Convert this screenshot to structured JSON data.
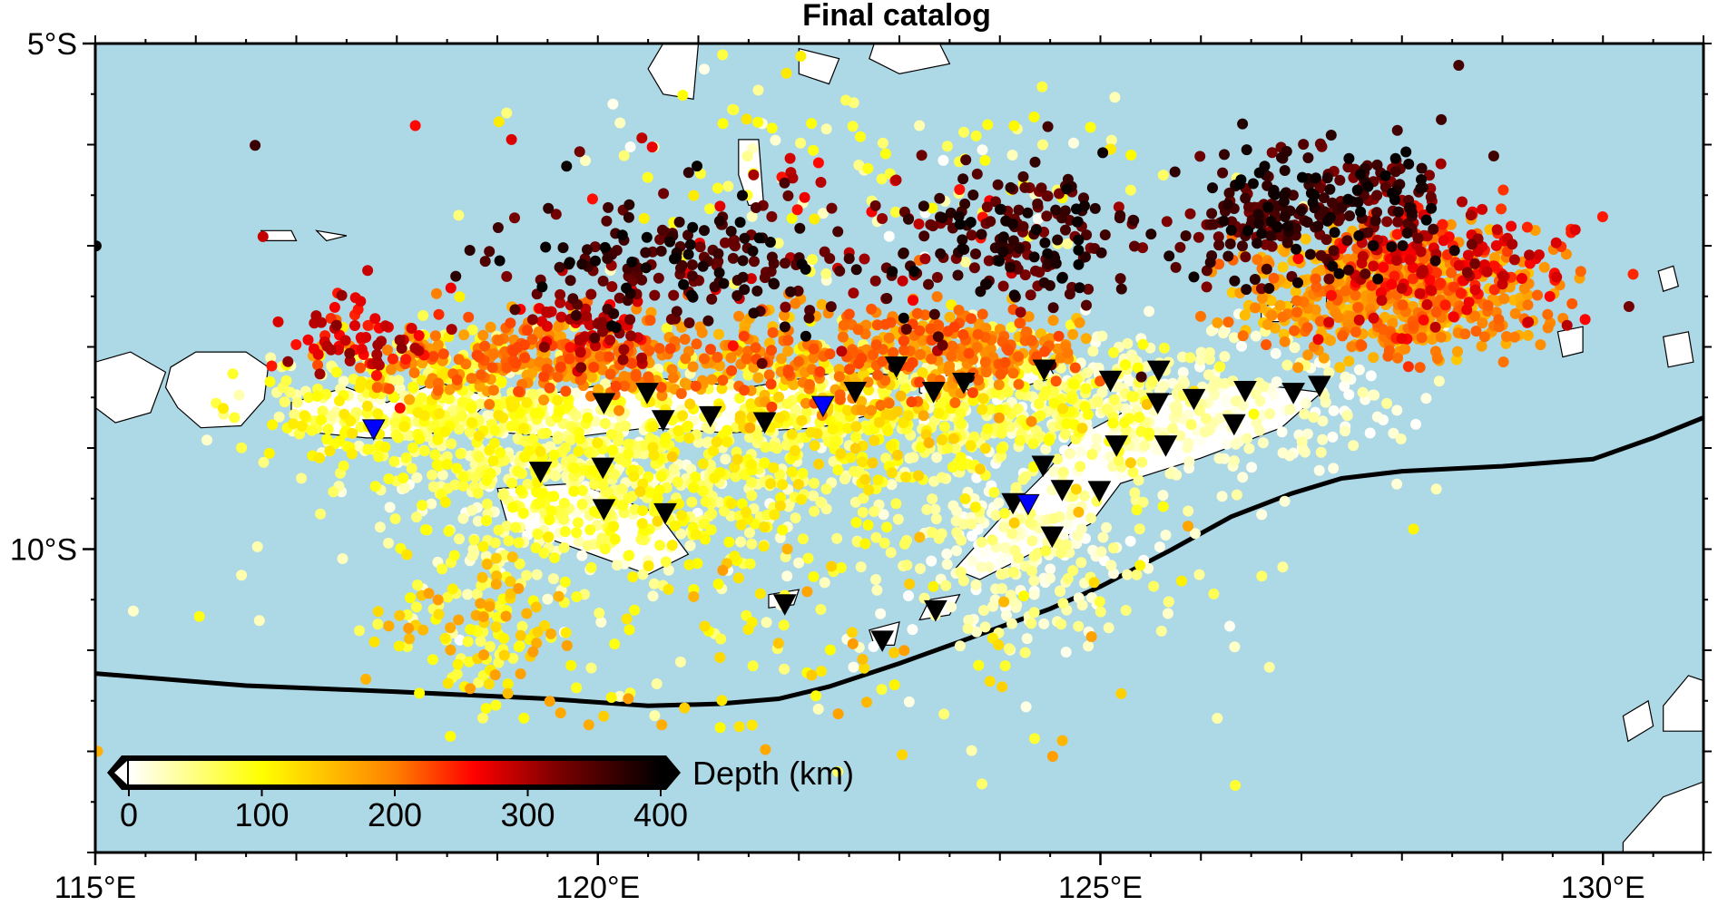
{
  "map": {
    "title": "Final catalog",
    "extent": {
      "lon": [
        115,
        131
      ],
      "lat": [
        -13,
        -5
      ]
    },
    "ocean_color": "#add8e6",
    "land_color": "#ffffff",
    "trench_color": "#000000",
    "lon_ticks": [
      {
        "value": 115,
        "label": "115°E"
      },
      {
        "value": 120,
        "label": "120°E"
      },
      {
        "value": 125,
        "label": "125°E"
      },
      {
        "value": 130,
        "label": "130°E"
      }
    ],
    "lat_ticks": [
      {
        "value": -5,
        "label": "5°S"
      },
      {
        "value": -10,
        "label": "10°S"
      }
    ],
    "trench_line": [
      [
        115.0,
        -11.23
      ],
      [
        116.5,
        -11.35
      ],
      [
        118.0,
        -11.41
      ],
      [
        119.5,
        -11.48
      ],
      [
        120.5,
        -11.55
      ],
      [
        121.2,
        -11.53
      ],
      [
        121.8,
        -11.48
      ],
      [
        122.3,
        -11.36
      ],
      [
        123.0,
        -11.13
      ],
      [
        123.7,
        -10.88
      ],
      [
        124.5,
        -10.59
      ],
      [
        125.0,
        -10.37
      ],
      [
        125.7,
        -10.01
      ],
      [
        126.3,
        -9.68
      ],
      [
        126.9,
        -9.45
      ],
      [
        127.4,
        -9.3
      ],
      [
        128.0,
        -9.23
      ],
      [
        129.0,
        -9.18
      ],
      [
        129.9,
        -9.11
      ],
      [
        130.5,
        -8.9
      ],
      [
        131.0,
        -8.7
      ]
    ],
    "stations_regular": [
      [
        122.97,
        -8.19
      ],
      [
        122.56,
        -8.44
      ],
      [
        123.34,
        -8.44
      ],
      [
        123.64,
        -8.35
      ],
      [
        124.44,
        -8.22
      ],
      [
        125.1,
        -8.33
      ],
      [
        125.58,
        -8.23
      ],
      [
        120.06,
        -8.55
      ],
      [
        120.49,
        -8.45
      ],
      [
        121.12,
        -8.68
      ],
      [
        120.65,
        -8.72
      ],
      [
        121.66,
        -8.74
      ],
      [
        125.57,
        -8.55
      ],
      [
        125.93,
        -8.51
      ],
      [
        126.44,
        -8.43
      ],
      [
        126.92,
        -8.45
      ],
      [
        127.18,
        -8.38
      ],
      [
        125.16,
        -8.97
      ],
      [
        125.65,
        -8.97
      ],
      [
        126.33,
        -8.76
      ],
      [
        119.43,
        -9.23
      ],
      [
        120.05,
        -9.19
      ],
      [
        124.43,
        -9.17
      ],
      [
        120.06,
        -9.6
      ],
      [
        120.67,
        -9.64
      ],
      [
        124.13,
        -9.54
      ],
      [
        124.62,
        -9.41
      ],
      [
        124.99,
        -9.42
      ],
      [
        124.52,
        -9.87
      ],
      [
        121.86,
        -10.54
      ],
      [
        123.36,
        -10.6
      ],
      [
        122.83,
        -10.9
      ]
    ],
    "stations_highlight": [
      [
        117.77,
        -8.81
      ],
      [
        122.24,
        -8.58
      ],
      [
        124.28,
        -9.55
      ]
    ],
    "land": [
      [
        [
          115.75,
          -8.2
        ],
        [
          116.0,
          -8.05
        ],
        [
          116.5,
          -8.05
        ],
        [
          116.72,
          -8.2
        ],
        [
          116.68,
          -8.52
        ],
        [
          116.45,
          -8.78
        ],
        [
          116.05,
          -8.8
        ],
        [
          115.82,
          -8.6
        ],
        [
          115.7,
          -8.4
        ]
      ],
      [
        [
          115.0,
          -8.15
        ],
        [
          115.35,
          -8.05
        ],
        [
          115.7,
          -8.25
        ],
        [
          115.55,
          -8.65
        ],
        [
          115.2,
          -8.75
        ],
        [
          115.0,
          -8.6
        ]
      ],
      [
        [
          116.95,
          -8.55
        ],
        [
          117.5,
          -8.4
        ],
        [
          117.9,
          -8.55
        ],
        [
          118.4,
          -8.35
        ],
        [
          118.95,
          -8.5
        ],
        [
          118.7,
          -8.75
        ],
        [
          118.2,
          -8.9
        ],
        [
          117.7,
          -8.9
        ],
        [
          117.2,
          -8.85
        ],
        [
          116.95,
          -8.7
        ]
      ],
      [
        [
          119.0,
          -8.6
        ],
        [
          119.6,
          -8.45
        ],
        [
          120.5,
          -8.3
        ],
        [
          121.5,
          -8.4
        ],
        [
          122.4,
          -8.25
        ],
        [
          123.0,
          -8.28
        ],
        [
          122.8,
          -8.65
        ],
        [
          122.2,
          -8.8
        ],
        [
          121.3,
          -8.85
        ],
        [
          120.5,
          -8.8
        ],
        [
          119.7,
          -8.9
        ],
        [
          119.1,
          -8.85
        ]
      ],
      [
        [
          123.2,
          -8.3
        ],
        [
          123.55,
          -8.28
        ],
        [
          123.7,
          -8.45
        ],
        [
          123.4,
          -8.55
        ],
        [
          123.2,
          -8.45
        ]
      ],
      [
        [
          124.0,
          -8.15
        ],
        [
          124.45,
          -8.12
        ],
        [
          124.55,
          -8.3
        ],
        [
          124.2,
          -8.4
        ],
        [
          124.0,
          -8.3
        ]
      ],
      [
        [
          124.75,
          -8.9
        ],
        [
          125.5,
          -8.5
        ],
        [
          126.4,
          -8.35
        ],
        [
          127.2,
          -8.45
        ],
        [
          126.8,
          -8.8
        ],
        [
          126.0,
          -9.1
        ],
        [
          125.2,
          -9.35
        ],
        [
          124.9,
          -9.75
        ],
        [
          124.3,
          -10.05
        ],
        [
          123.8,
          -10.3
        ],
        [
          123.55,
          -10.2
        ],
        [
          124.0,
          -9.7
        ],
        [
          124.45,
          -9.25
        ]
      ],
      [
        [
          123.3,
          -10.5
        ],
        [
          123.6,
          -10.45
        ],
        [
          123.5,
          -10.65
        ],
        [
          123.2,
          -10.7
        ]
      ],
      [
        [
          119.0,
          -9.4
        ],
        [
          119.8,
          -9.35
        ],
        [
          120.6,
          -9.65
        ],
        [
          120.9,
          -10.05
        ],
        [
          120.5,
          -10.25
        ],
        [
          119.8,
          -10.0
        ],
        [
          119.1,
          -9.75
        ]
      ],
      [
        [
          121.7,
          -10.45
        ],
        [
          122.0,
          -10.4
        ],
        [
          121.95,
          -10.55
        ],
        [
          121.7,
          -10.58
        ]
      ],
      [
        [
          122.7,
          -10.8
        ],
        [
          123.0,
          -10.72
        ],
        [
          122.95,
          -10.95
        ],
        [
          122.75,
          -10.95
        ]
      ],
      [
        [
          126.6,
          -7.6
        ],
        [
          126.95,
          -7.55
        ],
        [
          126.8,
          -7.75
        ],
        [
          126.6,
          -7.75
        ]
      ],
      [
        [
          127.25,
          -7.45
        ],
        [
          127.5,
          -7.45
        ],
        [
          127.4,
          -7.6
        ],
        [
          127.25,
          -7.6
        ]
      ],
      [
        [
          129.55,
          -7.85
        ],
        [
          129.8,
          -7.8
        ],
        [
          129.8,
          -8.05
        ],
        [
          129.6,
          -8.1
        ]
      ],
      [
        [
          130.6,
          -7.9
        ],
        [
          130.85,
          -7.85
        ],
        [
          130.9,
          -8.15
        ],
        [
          130.65,
          -8.2
        ]
      ],
      [
        [
          130.55,
          -7.25
        ],
        [
          130.7,
          -7.2
        ],
        [
          130.75,
          -7.4
        ],
        [
          130.6,
          -7.45
        ]
      ],
      [
        [
          130.6,
          -11.55
        ],
        [
          130.85,
          -11.25
        ],
        [
          131.0,
          -11.3
        ],
        [
          131.0,
          -11.8
        ],
        [
          130.6,
          -11.8
        ]
      ],
      [
        [
          130.2,
          -11.65
        ],
        [
          130.45,
          -11.5
        ],
        [
          130.5,
          -11.75
        ],
        [
          130.25,
          -11.9
        ]
      ],
      [
        [
          130.2,
          -12.9
        ],
        [
          130.6,
          -12.45
        ],
        [
          131.0,
          -12.3
        ],
        [
          131.0,
          -13.0
        ],
        [
          130.2,
          -13.0
        ]
      ],
      [
        [
          120.65,
          -5.0
        ],
        [
          121.0,
          -5.0
        ],
        [
          120.95,
          -5.55
        ],
        [
          120.65,
          -5.5
        ],
        [
          120.5,
          -5.25
        ]
      ],
      [
        [
          122.0,
          -5.05
        ],
        [
          122.4,
          -5.15
        ],
        [
          122.3,
          -5.4
        ],
        [
          122.0,
          -5.3
        ]
      ],
      [
        [
          122.75,
          -5.0
        ],
        [
          123.4,
          -5.0
        ],
        [
          123.5,
          -5.2
        ],
        [
          123.0,
          -5.3
        ],
        [
          122.7,
          -5.15
        ]
      ],
      [
        [
          121.4,
          -5.95
        ],
        [
          121.6,
          -5.95
        ],
        [
          121.65,
          -6.6
        ],
        [
          121.5,
          -6.6
        ],
        [
          121.4,
          -6.3
        ]
      ],
      [
        [
          116.65,
          -6.85
        ],
        [
          116.95,
          -6.85
        ],
        [
          117.0,
          -6.95
        ],
        [
          116.7,
          -6.95
        ]
      ],
      [
        [
          117.2,
          -6.85
        ],
        [
          117.5,
          -6.9
        ],
        [
          117.3,
          -6.95
        ]
      ]
    ],
    "colorbar": {
      "label": "Depth (km)",
      "min": 0,
      "max": 400,
      "ticks": [
        {
          "value": 0,
          "label": "0"
        },
        {
          "value": 100,
          "label": "100"
        },
        {
          "value": 200,
          "label": "200"
        },
        {
          "value": 300,
          "label": "300"
        },
        {
          "value": 400,
          "label": "400"
        }
      ],
      "stops": [
        {
          "value": 0,
          "color": "#ffffff"
        },
        {
          "value": 100,
          "color": "#ffff00"
        },
        {
          "value": 200,
          "color": "#ff8000"
        },
        {
          "value": 260,
          "color": "#ff0000"
        },
        {
          "value": 320,
          "color": "#800000"
        },
        {
          "value": 400,
          "color": "#000000"
        }
      ]
    },
    "highlight_station_color": "#0000ff",
    "station_color": "#000000",
    "clusters": [
      {
        "lon": 118.3,
        "lat": -8.6,
        "sdlon": 0.9,
        "sdlat": 0.35,
        "n": 450,
        "depth": [
          20,
          120
        ]
      },
      {
        "lon": 119.6,
        "lat": -9.3,
        "sdlon": 0.9,
        "sdlat": 0.45,
        "n": 500,
        "depth": [
          0,
          100
        ]
      },
      {
        "lon": 121.0,
        "lat": -9.4,
        "sdlon": 0.8,
        "sdlat": 0.5,
        "n": 300,
        "depth": [
          20,
          120
        ]
      },
      {
        "lon": 122.5,
        "lat": -8.7,
        "sdlon": 0.9,
        "sdlat": 0.4,
        "n": 350,
        "depth": [
          40,
          140
        ]
      },
      {
        "lon": 124.3,
        "lat": -8.6,
        "sdlon": 0.9,
        "sdlat": 0.35,
        "n": 400,
        "depth": [
          0,
          100
        ]
      },
      {
        "lon": 124.3,
        "lat": -10.0,
        "sdlon": 0.6,
        "sdlat": 0.45,
        "n": 250,
        "depth": [
          0,
          60
        ]
      },
      {
        "lon": 126.2,
        "lat": -8.6,
        "sdlon": 0.9,
        "sdlat": 0.4,
        "n": 250,
        "depth": [
          0,
          40
        ]
      },
      {
        "lon": 118.8,
        "lat": -10.8,
        "sdlon": 0.5,
        "sdlat": 0.35,
        "n": 120,
        "depth": [
          60,
          180
        ]
      },
      {
        "lon": 119.6,
        "lat": -8.1,
        "sdlon": 0.9,
        "sdlat": 0.2,
        "n": 320,
        "depth": [
          160,
          230
        ]
      },
      {
        "lon": 122.5,
        "lat": -8.1,
        "sdlon": 0.8,
        "sdlat": 0.25,
        "n": 250,
        "depth": [
          150,
          230
        ]
      },
      {
        "lon": 123.8,
        "lat": -8.0,
        "sdlon": 0.5,
        "sdlat": 0.2,
        "n": 150,
        "depth": [
          150,
          230
        ]
      },
      {
        "lon": 117.6,
        "lat": -7.9,
        "sdlon": 0.35,
        "sdlat": 0.2,
        "n": 60,
        "depth": [
          240,
          320
        ]
      },
      {
        "lon": 119.9,
        "lat": -7.8,
        "sdlon": 0.3,
        "sdlat": 0.15,
        "n": 60,
        "depth": [
          250,
          320
        ]
      },
      {
        "lon": 120.9,
        "lat": -7.2,
        "sdlon": 0.8,
        "sdlat": 0.3,
        "n": 160,
        "depth": [
          320,
          400
        ]
      },
      {
        "lon": 124.3,
        "lat": -6.9,
        "sdlon": 0.6,
        "sdlat": 0.35,
        "n": 170,
        "depth": [
          320,
          400
        ]
      },
      {
        "lon": 126.8,
        "lat": -6.7,
        "sdlon": 0.5,
        "sdlat": 0.3,
        "n": 180,
        "depth": [
          320,
          400
        ]
      },
      {
        "lon": 127.8,
        "lat": -6.5,
        "sdlon": 0.4,
        "sdlat": 0.3,
        "n": 100,
        "depth": [
          300,
          400
        ]
      },
      {
        "lon": 127.9,
        "lat": -7.5,
        "sdlon": 0.7,
        "sdlat": 0.3,
        "n": 600,
        "depth": [
          140,
          220
        ]
      },
      {
        "lon": 128.3,
        "lat": -7.2,
        "sdlon": 0.7,
        "sdlat": 0.3,
        "n": 180,
        "depth": [
          230,
          300
        ]
      },
      {
        "lon": 122.5,
        "lat": -6.2,
        "sdlon": 1.8,
        "sdlat": 0.6,
        "n": 120,
        "depth": [
          0,
          120
        ]
      },
      {
        "lon": 122.0,
        "lat": -10.8,
        "sdlon": 2.5,
        "sdlat": 0.9,
        "n": 180,
        "depth": [
          0,
          180
        ]
      },
      {
        "lon": 122.0,
        "lat": -7.0,
        "sdlon": 2.5,
        "sdlat": 0.6,
        "n": 120,
        "depth": [
          250,
          400
        ]
      }
    ]
  }
}
